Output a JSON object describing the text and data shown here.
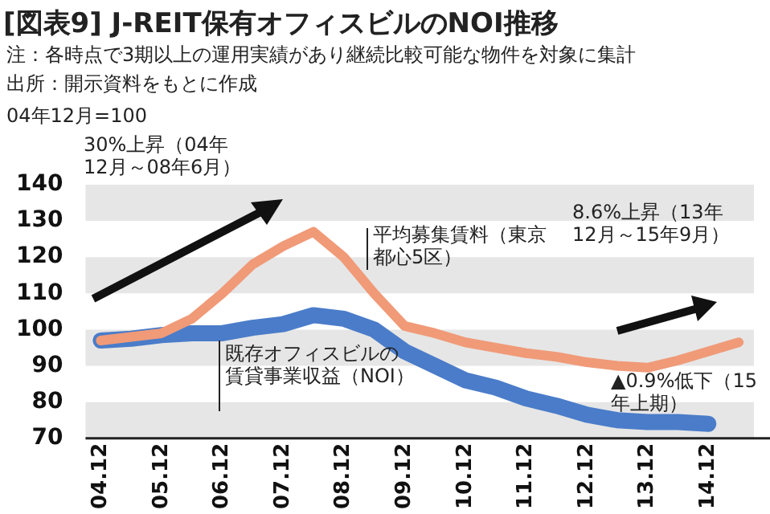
{
  "chart_data": {
    "type": "line",
    "title": "[図表9] J-REIT保有オフィスビルのNOI推移",
    "ylabel": "04年12月=100",
    "annotations": [
      "注：各時点で3期以上の運用実績があり継続比較可能な物件を対象に集計",
      "出所：開示資料をもとに作成",
      "30%上昇（04年12月～08年6月）",
      "8.6%上昇（13年12月～15年9月）",
      "▲0.9%低下（15年上期）"
    ],
    "categories": [
      "04.12",
      null,
      "05.12",
      null,
      "06.12",
      null,
      "07.12",
      null,
      "08.12",
      null,
      "09.12",
      null,
      "10.12",
      null,
      "11.12",
      null,
      "12.12",
      null,
      "13.12",
      null,
      "14.12",
      null
    ],
    "series": [
      {
        "name": "平均募集賃料（東京都心5区）",
        "color": "#f09a78",
        "values": [
          97,
          98,
          99,
          103,
          110,
          118,
          123,
          127,
          120,
          110,
          101,
          99,
          96.5,
          95,
          93.5,
          92.5,
          91,
          90,
          89.5,
          91.5,
          94,
          96.5
        ]
      },
      {
        "name": "既存オフィスビルの賃貸事業収益（NOI）",
        "color": "#4a7cc9",
        "values": [
          97,
          97.5,
          98.5,
          99,
          99,
          100.5,
          101.5,
          104,
          103,
          100,
          94,
          90,
          86,
          84,
          81,
          79,
          76.5,
          75,
          74.5,
          74.5,
          74,
          null
        ]
      }
    ],
    "ylim": [
      70,
      140
    ],
    "yticks": [
      70,
      80,
      90,
      100,
      110,
      120,
      130,
      140
    ],
    "legend": false,
    "marker": "none",
    "line_style": "solid"
  }
}
